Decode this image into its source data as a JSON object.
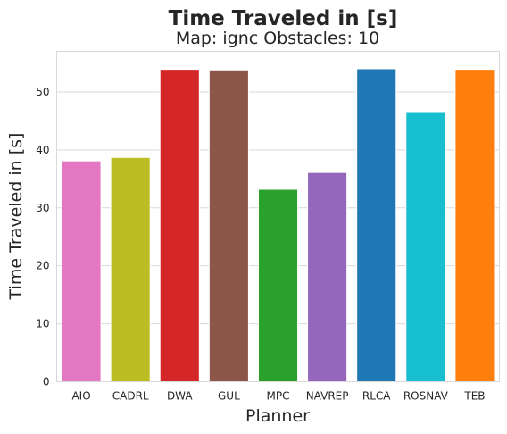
{
  "chart_data": {
    "type": "bar",
    "title": "Time Traveled in [s]",
    "subtitle": "Map: ignc Obstacles: 10",
    "xlabel": "Planner",
    "ylabel": "Time Traveled in [s]",
    "categories": [
      "AIO",
      "CADRL",
      "DWA",
      "GUL",
      "MPC",
      "NAVREP",
      "RLCA",
      "ROSNAV",
      "TEB"
    ],
    "values": [
      38.1,
      38.7,
      53.9,
      53.8,
      33.2,
      36.1,
      54.0,
      46.6,
      53.9
    ],
    "colors": [
      "#e377c2",
      "#bcbd22",
      "#d62728",
      "#8c564b",
      "#2ca02c",
      "#9467bd",
      "#1f77b4",
      "#17becf",
      "#ff7f0e"
    ],
    "ylim": [
      0,
      57
    ],
    "yticks": [
      0,
      10,
      20,
      30,
      40,
      50
    ],
    "grid": true,
    "legend": "none"
  }
}
